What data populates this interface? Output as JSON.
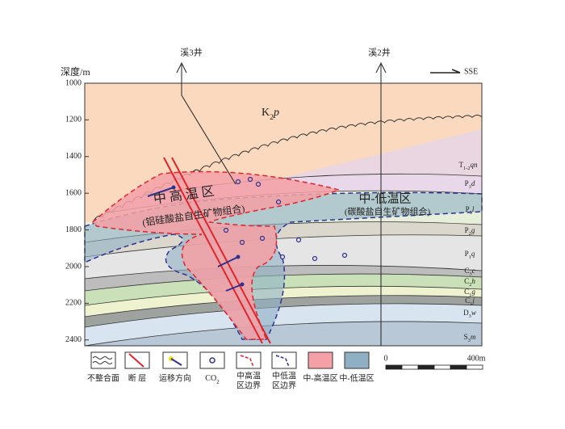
{
  "axis": {
    "title": "深度/m",
    "ticks": [
      1000,
      1200,
      1400,
      1600,
      1800,
      2000,
      2200,
      2400
    ]
  },
  "wells": [
    "溪3井",
    "溪2井"
  ],
  "direction": "SSE",
  "formations": [
    {
      "base": "K",
      "sub": "2",
      "suffix": "p"
    },
    {
      "base": "T",
      "sub": "1-2",
      "suffix": "qn"
    },
    {
      "base": "P",
      "sub": "3",
      "suffix": "d"
    },
    {
      "base": "P",
      "sub": "3",
      "suffix": "l"
    },
    {
      "base": "P",
      "sub": "2",
      "suffix": "g"
    },
    {
      "base": "P",
      "sub": "1",
      "suffix": "q"
    },
    {
      "base": "C",
      "sub": "3",
      "suffix": "c"
    },
    {
      "base": "C",
      "sub": "2",
      "suffix": "h"
    },
    {
      "base": "C",
      "sub": "1",
      "suffix": "g"
    },
    {
      "base": "C",
      "sub": "1",
      "suffix": "j"
    },
    {
      "base": "D",
      "sub": "3",
      "suffix": "w"
    },
    {
      "base": "S",
      "sub": "3",
      "suffix": "m"
    }
  ],
  "zones": {
    "high": {
      "title": "中 高 温 区",
      "subtitle": "(铝硅酸盐自生矿物组合)"
    },
    "low": {
      "title": "中-低温区",
      "subtitle": "(碳酸盐自生矿物组合)"
    }
  },
  "legend": [
    "不整合面",
    "断 层",
    "运移方向",
    {
      "base": "CO",
      "sub": "2"
    },
    "中高温\n区边界",
    "中低温\n区边界",
    "中-高温区",
    "中-低温区"
  ],
  "scale": {
    "start": "0",
    "end": "400m"
  }
}
